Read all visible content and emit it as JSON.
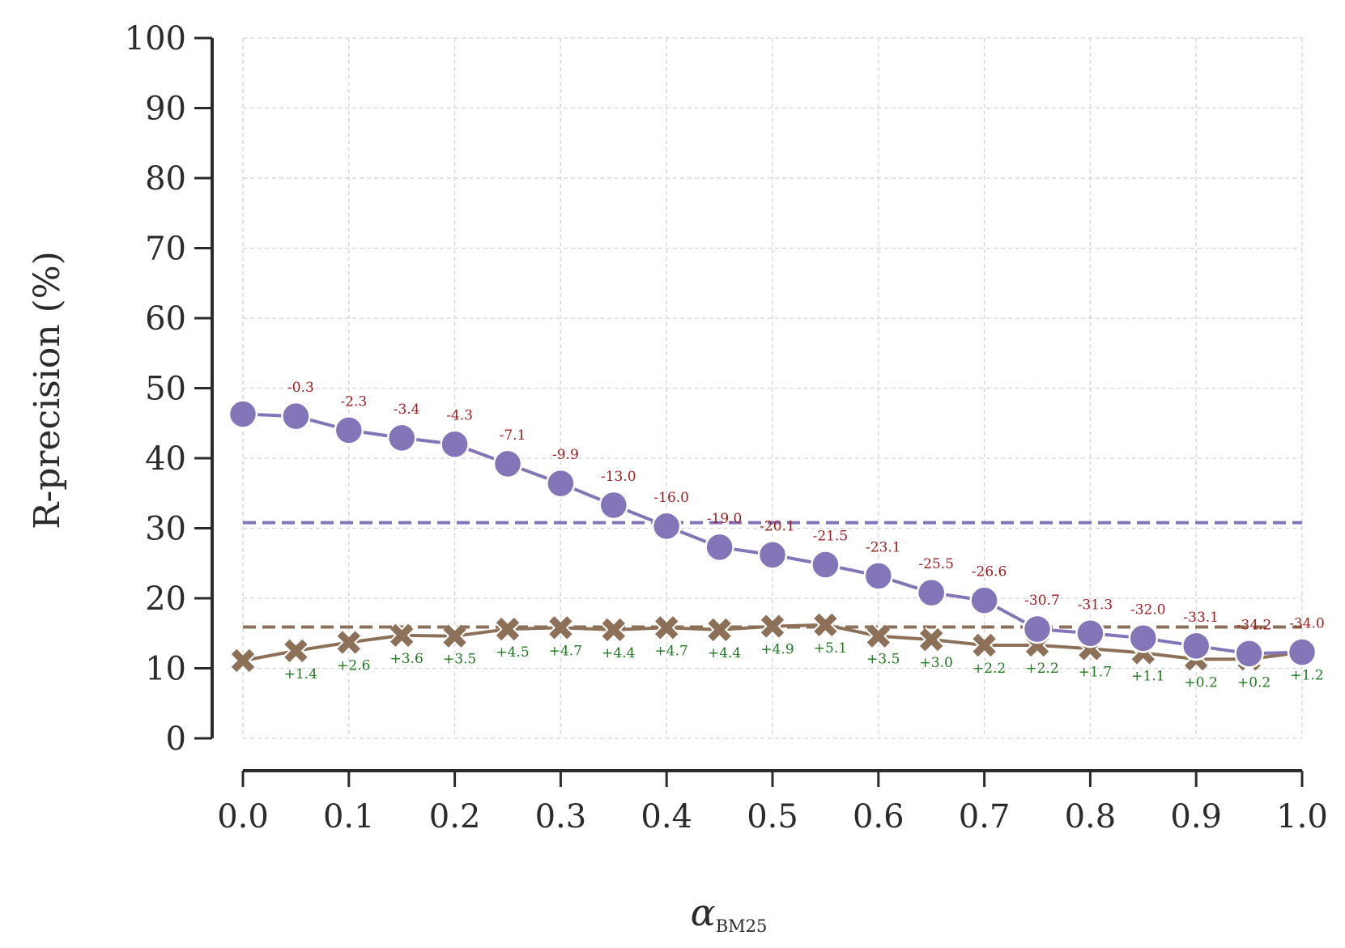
{
  "chart_data": {
    "type": "line",
    "title": "",
    "xlabel": "α",
    "xlabel_subscript": "BM25",
    "ylabel": "R-precision (%)",
    "xlim": [
      0.0,
      1.0
    ],
    "ylim": [
      0,
      100
    ],
    "x_ticks": [
      "0.0",
      "0.1",
      "0.2",
      "0.3",
      "0.4",
      "0.5",
      "0.6",
      "0.7",
      "0.8",
      "0.9",
      "1.0"
    ],
    "y_ticks": [
      "0",
      "10",
      "20",
      "30",
      "40",
      "50",
      "60",
      "70",
      "80",
      "90",
      "100"
    ],
    "grid": true,
    "x": [
      0.0,
      0.05,
      0.1,
      0.15,
      0.2,
      0.25,
      0.3,
      0.35,
      0.4,
      0.45,
      0.5,
      0.55,
      0.6,
      0.65,
      0.7,
      0.75,
      0.8,
      0.85,
      0.9,
      0.95,
      1.0
    ],
    "series": [
      {
        "name": "purple (circle)",
        "marker": "circle",
        "color": "#8475b8",
        "values": [
          46.3,
          46.0,
          44.0,
          42.9,
          42.0,
          39.2,
          36.4,
          33.3,
          30.3,
          27.3,
          26.2,
          24.8,
          23.2,
          20.8,
          19.7,
          15.6,
          15.0,
          14.3,
          13.2,
          12.1,
          12.3
        ],
        "baseline": 30.8,
        "annotations": [
          "",
          "-0.3",
          "-2.3",
          "-3.4",
          "-4.3",
          "-7.1",
          "-9.9",
          "-13.0",
          "-16.0",
          "-19.0",
          "-20.1",
          "-21.5",
          "-23.1",
          "-25.5",
          "-26.6",
          "-30.7",
          "-31.3",
          "-32.0",
          "-33.1",
          "-34.2",
          "-34.0"
        ],
        "annotation_color": "#9b1c1c"
      },
      {
        "name": "brown (x)",
        "marker": "x",
        "color": "#8c7158",
        "values": [
          11.1,
          12.5,
          13.7,
          14.7,
          14.6,
          15.6,
          15.8,
          15.5,
          15.8,
          15.5,
          16.0,
          16.2,
          14.6,
          14.1,
          13.3,
          13.3,
          12.8,
          12.2,
          11.3,
          11.3,
          12.3
        ],
        "baseline": 15.9,
        "annotations": [
          "",
          "+1.4",
          "+2.6",
          "+3.6",
          "+3.5",
          "+4.5",
          "+4.7",
          "+4.4",
          "+4.7",
          "+4.4",
          "+4.9",
          "+5.1",
          "+3.5",
          "+3.0",
          "+2.2",
          "+2.2",
          "+1.7",
          "+1.1",
          "+0.2",
          "+0.2",
          "+1.2"
        ],
        "annotation_color": "#1e7a1e"
      }
    ]
  }
}
